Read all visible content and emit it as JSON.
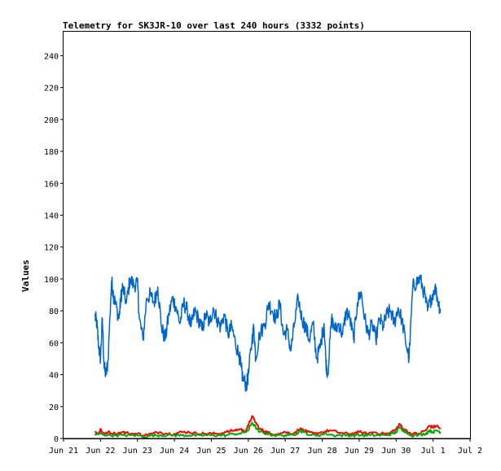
{
  "chart_data": {
    "type": "line",
    "title": "Telemetry for SK3JR-10 over last 240 hours (3332 points)",
    "xlabel": "",
    "ylabel": "Values",
    "x_ticks": [
      "Jun 21",
      "Jun 22",
      "Jun 23",
      "Jun 24",
      "Jun 25",
      "Jun 26",
      "Jun 27",
      "Jun 28",
      "Jun 29",
      "Jun 30",
      "Jul 1",
      "Jul 2"
    ],
    "xlim": [
      0,
      11
    ],
    "y_ticks": [
      0,
      20,
      40,
      60,
      80,
      100,
      120,
      140,
      160,
      180,
      200,
      220,
      240
    ],
    "ylim": [
      0,
      255
    ],
    "grid": false,
    "legend": "none",
    "x_unit": "days after Jun 21 00:00",
    "series": [
      {
        "color": "#0066cc",
        "points": [
          [
            0.85,
            77
          ],
          [
            0.9,
            72
          ],
          [
            0.95,
            58
          ],
          [
            1.0,
            50
          ],
          [
            1.05,
            75
          ],
          [
            1.1,
            44
          ],
          [
            1.15,
            40
          ],
          [
            1.2,
            48
          ],
          [
            1.3,
            99
          ],
          [
            1.35,
            90
          ],
          [
            1.4,
            85
          ],
          [
            1.5,
            75
          ],
          [
            1.55,
            88
          ],
          [
            1.6,
            95
          ],
          [
            1.7,
            85
          ],
          [
            1.8,
            100
          ],
          [
            1.9,
            96
          ],
          [
            2.0,
            98
          ],
          [
            2.05,
            75
          ],
          [
            2.15,
            62
          ],
          [
            2.25,
            88
          ],
          [
            2.35,
            90
          ],
          [
            2.45,
            85
          ],
          [
            2.55,
            95
          ],
          [
            2.65,
            70
          ],
          [
            2.75,
            62
          ],
          [
            2.85,
            78
          ],
          [
            2.95,
            88
          ],
          [
            3.05,
            82
          ],
          [
            3.15,
            72
          ],
          [
            3.25,
            85
          ],
          [
            3.35,
            80
          ],
          [
            3.45,
            70
          ],
          [
            3.55,
            80
          ],
          [
            3.65,
            75
          ],
          [
            3.75,
            68
          ],
          [
            3.85,
            78
          ],
          [
            3.95,
            72
          ],
          [
            4.05,
            82
          ],
          [
            4.15,
            75
          ],
          [
            4.25,
            70
          ],
          [
            4.35,
            78
          ],
          [
            4.45,
            65
          ],
          [
            4.55,
            70
          ],
          [
            4.65,
            60
          ],
          [
            4.75,
            52
          ],
          [
            4.8,
            45
          ],
          [
            4.85,
            38
          ],
          [
            4.95,
            33
          ],
          [
            5.0,
            40
          ],
          [
            5.1,
            62
          ],
          [
            5.15,
            70
          ],
          [
            5.2,
            50
          ],
          [
            5.3,
            65
          ],
          [
            5.45,
            72
          ],
          [
            5.55,
            85
          ],
          [
            5.65,
            80
          ],
          [
            5.75,
            75
          ],
          [
            5.85,
            85
          ],
          [
            5.95,
            65
          ],
          [
            6.05,
            68
          ],
          [
            6.15,
            55
          ],
          [
            6.25,
            72
          ],
          [
            6.35,
            88
          ],
          [
            6.45,
            75
          ],
          [
            6.55,
            70
          ],
          [
            6.65,
            62
          ],
          [
            6.75,
            72
          ],
          [
            6.85,
            50
          ],
          [
            6.95,
            58
          ],
          [
            7.05,
            72
          ],
          [
            7.1,
            48
          ],
          [
            7.15,
            40
          ],
          [
            7.25,
            75
          ],
          [
            7.35,
            68
          ],
          [
            7.45,
            72
          ],
          [
            7.55,
            65
          ],
          [
            7.65,
            80
          ],
          [
            7.75,
            75
          ],
          [
            7.85,
            62
          ],
          [
            7.95,
            85
          ],
          [
            8.05,
            92
          ],
          [
            8.15,
            75
          ],
          [
            8.25,
            65
          ],
          [
            8.35,
            72
          ],
          [
            8.45,
            62
          ],
          [
            8.55,
            75
          ],
          [
            8.65,
            70
          ],
          [
            8.75,
            78
          ],
          [
            8.85,
            80
          ],
          [
            8.95,
            72
          ],
          [
            9.05,
            82
          ],
          [
            9.15,
            75
          ],
          [
            9.25,
            62
          ],
          [
            9.35,
            50
          ],
          [
            9.45,
            95
          ],
          [
            9.55,
            98
          ],
          [
            9.65,
            100
          ],
          [
            9.75,
            92
          ],
          [
            9.85,
            80
          ],
          [
            9.95,
            88
          ],
          [
            10.05,
            95
          ],
          [
            10.15,
            85
          ],
          [
            10.2,
            80
          ]
        ]
      },
      {
        "color": "#ff0000",
        "points": [
          [
            0.85,
            4
          ],
          [
            0.95,
            3
          ],
          [
            1.0,
            6
          ],
          [
            1.05,
            3
          ],
          [
            1.2,
            4
          ],
          [
            1.4,
            3
          ],
          [
            1.6,
            4
          ],
          [
            1.8,
            3
          ],
          [
            2.0,
            3
          ],
          [
            2.2,
            2
          ],
          [
            2.4,
            3
          ],
          [
            2.6,
            4
          ],
          [
            2.8,
            3
          ],
          [
            3.0,
            3
          ],
          [
            3.2,
            4
          ],
          [
            3.4,
            4
          ],
          [
            3.6,
            3
          ],
          [
            3.8,
            3
          ],
          [
            4.0,
            3
          ],
          [
            4.2,
            3
          ],
          [
            4.4,
            4
          ],
          [
            4.6,
            5
          ],
          [
            4.8,
            6
          ],
          [
            4.9,
            4
          ],
          [
            5.0,
            8
          ],
          [
            5.1,
            14
          ],
          [
            5.2,
            10
          ],
          [
            5.3,
            6
          ],
          [
            5.4,
            5
          ],
          [
            5.5,
            4
          ],
          [
            5.6,
            3
          ],
          [
            5.8,
            3
          ],
          [
            6.0,
            4
          ],
          [
            6.2,
            3
          ],
          [
            6.4,
            6
          ],
          [
            6.5,
            5
          ],
          [
            6.6,
            4
          ],
          [
            6.8,
            3
          ],
          [
            7.0,
            4
          ],
          [
            7.2,
            5
          ],
          [
            7.4,
            4
          ],
          [
            7.6,
            3
          ],
          [
            7.8,
            3
          ],
          [
            8.0,
            4
          ],
          [
            8.2,
            3
          ],
          [
            8.4,
            4
          ],
          [
            8.6,
            3
          ],
          [
            8.8,
            3
          ],
          [
            9.0,
            6
          ],
          [
            9.1,
            9
          ],
          [
            9.2,
            6
          ],
          [
            9.4,
            3
          ],
          [
            9.6,
            3
          ],
          [
            9.8,
            5
          ],
          [
            9.9,
            8
          ],
          [
            10.0,
            7
          ],
          [
            10.1,
            8
          ],
          [
            10.2,
            6
          ]
        ]
      },
      {
        "color": "#00aa00",
        "points": [
          [
            0.85,
            2
          ],
          [
            1.0,
            3
          ],
          [
            1.2,
            2
          ],
          [
            1.4,
            2
          ],
          [
            1.6,
            2
          ],
          [
            1.8,
            2
          ],
          [
            2.0,
            2
          ],
          [
            2.2,
            1
          ],
          [
            2.4,
            2
          ],
          [
            2.6,
            2
          ],
          [
            2.8,
            2
          ],
          [
            3.0,
            2
          ],
          [
            3.2,
            2
          ],
          [
            3.4,
            2
          ],
          [
            3.6,
            2
          ],
          [
            3.8,
            2
          ],
          [
            4.0,
            2
          ],
          [
            4.2,
            2
          ],
          [
            4.4,
            2
          ],
          [
            4.6,
            3
          ],
          [
            4.8,
            3
          ],
          [
            5.0,
            5
          ],
          [
            5.1,
            10
          ],
          [
            5.2,
            7
          ],
          [
            5.3,
            4
          ],
          [
            5.5,
            3
          ],
          [
            5.7,
            2
          ],
          [
            5.9,
            2
          ],
          [
            6.1,
            2
          ],
          [
            6.3,
            3
          ],
          [
            6.4,
            5
          ],
          [
            6.5,
            4
          ],
          [
            6.7,
            2
          ],
          [
            6.9,
            2
          ],
          [
            7.1,
            3
          ],
          [
            7.3,
            2
          ],
          [
            7.5,
            2
          ],
          [
            7.7,
            2
          ],
          [
            7.9,
            2
          ],
          [
            8.1,
            2
          ],
          [
            8.3,
            2
          ],
          [
            8.5,
            2
          ],
          [
            8.7,
            2
          ],
          [
            8.9,
            3
          ],
          [
            9.0,
            4
          ],
          [
            9.1,
            7
          ],
          [
            9.2,
            5
          ],
          [
            9.4,
            2
          ],
          [
            9.6,
            2
          ],
          [
            9.8,
            3
          ],
          [
            9.9,
            5
          ],
          [
            10.0,
            4
          ],
          [
            10.1,
            5
          ],
          [
            10.2,
            4
          ]
        ]
      }
    ]
  }
}
